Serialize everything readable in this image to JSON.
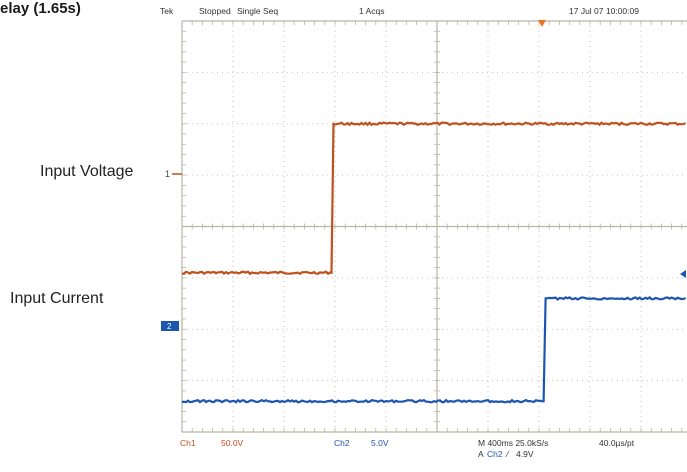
{
  "header": {
    "partial_title": "elay (1.65s)",
    "brand": "Tek",
    "run_state": "Stopped",
    "acq_mode": "Single Seq",
    "acq_count": "1 Acqs",
    "timestamp": "17 Jul 07 10:00:09"
  },
  "labels": {
    "input_voltage": "Input Voltage",
    "input_current": "Input Current",
    "ch1_marker": "1",
    "ch2_marker": "2"
  },
  "footer": {
    "ch1_name": "Ch1",
    "ch1_scale": "50.0V",
    "ch2_name": "Ch2",
    "ch2_scale": "5.0V",
    "timebase": "M 400ms 25.0kS/s",
    "record": "40.0µs/pt",
    "trigger_prefix": "A",
    "trigger_source": "Ch2",
    "trigger_slope": "⁄",
    "trigger_level": "4.9V"
  },
  "colors": {
    "ch1": "#c0501c",
    "ch2": "#1c56b0",
    "grid": "#b9b6a4",
    "background": "#ffffff"
  },
  "chart_data": {
    "type": "line",
    "series": [
      {
        "channel": "Ch1",
        "step_fraction": 0.3,
        "low_div": -0.9,
        "high_div": 2.0
      },
      {
        "channel": "Ch2",
        "step_fraction": 0.72,
        "low_div": -3.4,
        "high_div": -1.4
      }
    ]
  }
}
